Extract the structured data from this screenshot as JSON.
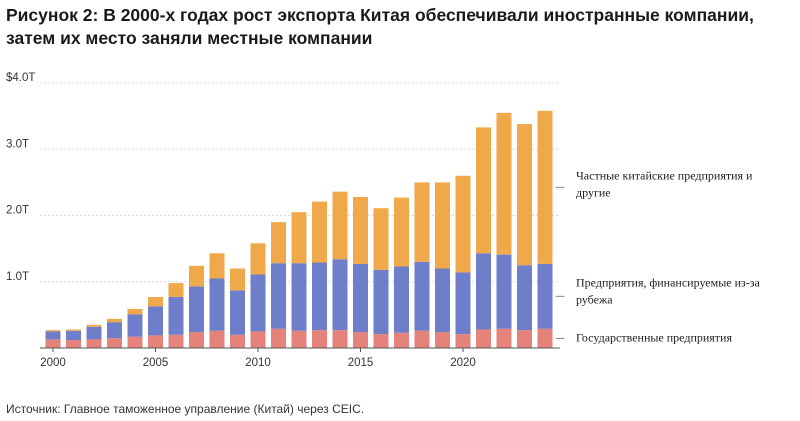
{
  "title": "Рисунок 2: В 2000-х годах рост экспорта Китая обеспечивали иностранные компании, затем их место заняли местные компании",
  "source": "Источник: Главное таможенное управление (Китай) через CEIC.",
  "chart_data": {
    "type": "bar",
    "stacked": true,
    "x": [
      2000,
      2001,
      2002,
      2003,
      2004,
      2005,
      2006,
      2007,
      2008,
      2009,
      2010,
      2011,
      2012,
      2013,
      2014,
      2015,
      2016,
      2017,
      2018,
      2019,
      2020,
      2021,
      2022,
      2023,
      2024
    ],
    "x_tick_labels": [
      "2000",
      "2005",
      "2010",
      "2015",
      "2020"
    ],
    "y_tick_labels": [
      "$4.0T",
      "3.0T",
      "2.0T",
      "1.0T"
    ],
    "y_ticks": [
      4.0,
      3.0,
      2.0,
      1.0
    ],
    "ylim": [
      0,
      4.0
    ],
    "grid": true,
    "series": [
      {
        "name": "Государственные предприятия",
        "color": "#e5837a",
        "values": [
          0.13,
          0.12,
          0.13,
          0.15,
          0.17,
          0.19,
          0.2,
          0.24,
          0.26,
          0.2,
          0.25,
          0.29,
          0.26,
          0.27,
          0.27,
          0.24,
          0.21,
          0.23,
          0.26,
          0.24,
          0.21,
          0.28,
          0.29,
          0.27,
          0.29
        ]
      },
      {
        "name": "Предприятия, финансируемые из-за рубежа",
        "color": "#6e7ecb",
        "values": [
          0.12,
          0.14,
          0.19,
          0.24,
          0.34,
          0.44,
          0.57,
          0.69,
          0.79,
          0.67,
          0.86,
          0.99,
          1.02,
          1.02,
          1.07,
          1.03,
          0.97,
          1.0,
          1.04,
          0.96,
          0.93,
          1.15,
          1.12,
          0.98,
          0.98
        ]
      },
      {
        "name": "Частные китайские предприятия и другие",
        "color": "#f0a94a",
        "values": [
          0.02,
          0.02,
          0.03,
          0.05,
          0.08,
          0.14,
          0.21,
          0.31,
          0.38,
          0.33,
          0.47,
          0.62,
          0.77,
          0.92,
          1.02,
          1.01,
          0.93,
          1.04,
          1.2,
          1.3,
          1.46,
          1.9,
          2.14,
          2.13,
          2.31
        ]
      }
    ],
    "legend_placement": "right, labels beside bar segments"
  },
  "legend_lines": [
    [
      "Частные китайские предприятия и",
      "другие"
    ],
    [
      "Предприятия, финансируемые из-за",
      "рубежа"
    ],
    [
      "Государственные предприятия"
    ]
  ]
}
